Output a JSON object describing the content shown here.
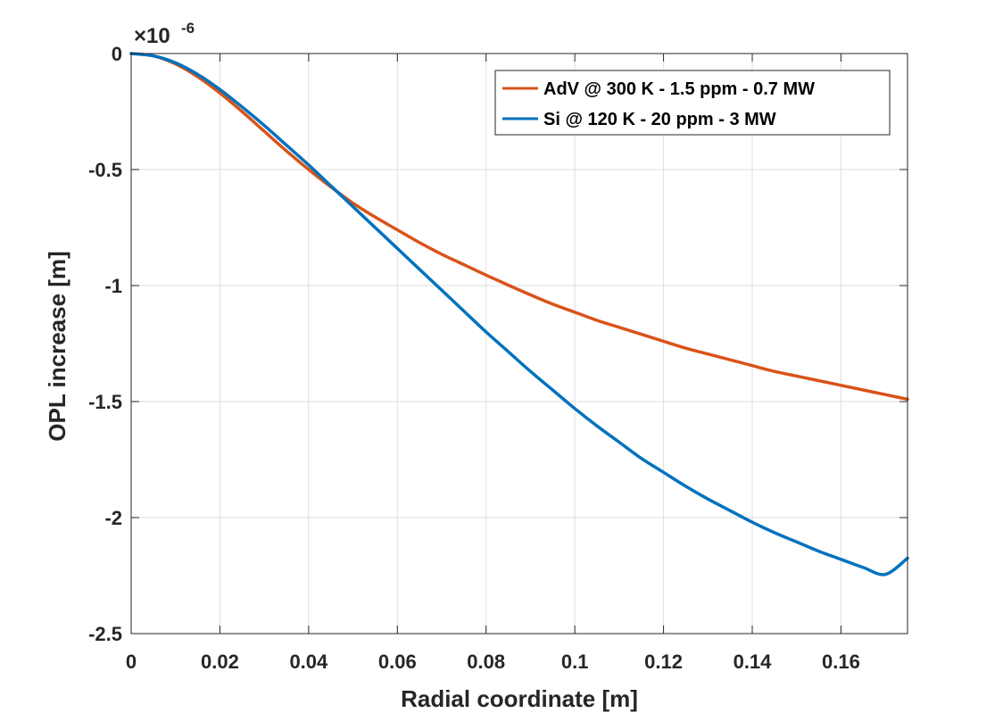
{
  "chart_data": {
    "type": "line",
    "title": "",
    "xlabel": "Radial coordinate [m]",
    "ylabel": "OPL increase [m]",
    "xlim": [
      0,
      0.175
    ],
    "ylim": [
      -2.5,
      0
    ],
    "y_exponent_label": "×10",
    "y_exponent_power": "-6",
    "grid": true,
    "legend_position": "top-right",
    "x_ticks": [
      0,
      0.02,
      0.04,
      0.06,
      0.08,
      0.1,
      0.12,
      0.14,
      0.16
    ],
    "x_tick_labels": [
      "0",
      "0.02",
      "0.04",
      "0.06",
      "0.08",
      "0.1",
      "0.12",
      "0.14",
      "0.16"
    ],
    "y_ticks": [
      0,
      -0.5,
      -1,
      -1.5,
      -2,
      -2.5
    ],
    "y_tick_labels": [
      "0",
      "-0.5",
      "-1",
      "-1.5",
      "-2",
      "-2.5"
    ],
    "series": [
      {
        "name": "AdV @ 300 K - 1.5 ppm - 0.7 MW",
        "color": "#D95319",
        "x": [
          0,
          0.005,
          0.01,
          0.015,
          0.02,
          0.025,
          0.03,
          0.035,
          0.04,
          0.045,
          0.05,
          0.055,
          0.06,
          0.065,
          0.07,
          0.075,
          0.08,
          0.085,
          0.09,
          0.095,
          0.1,
          0.105,
          0.11,
          0.115,
          0.12,
          0.125,
          0.13,
          0.135,
          0.14,
          0.145,
          0.15,
          0.155,
          0.16,
          0.165,
          0.17,
          0.175
        ],
        "y": [
          0,
          -0.01,
          -0.045,
          -0.1,
          -0.17,
          -0.25,
          -0.335,
          -0.42,
          -0.5,
          -0.575,
          -0.645,
          -0.705,
          -0.76,
          -0.815,
          -0.865,
          -0.91,
          -0.955,
          -0.998,
          -1.04,
          -1.08,
          -1.115,
          -1.15,
          -1.18,
          -1.21,
          -1.24,
          -1.27,
          -1.295,
          -1.32,
          -1.345,
          -1.37,
          -1.39,
          -1.41,
          -1.43,
          -1.45,
          -1.47,
          -1.49
        ]
      },
      {
        "name": "Si @ 120 K - 20 ppm - 3 MW",
        "color": "#0072BD",
        "x": [
          0,
          0.005,
          0.01,
          0.015,
          0.02,
          0.025,
          0.03,
          0.035,
          0.04,
          0.045,
          0.05,
          0.055,
          0.06,
          0.065,
          0.07,
          0.075,
          0.08,
          0.085,
          0.09,
          0.095,
          0.1,
          0.105,
          0.11,
          0.115,
          0.12,
          0.125,
          0.13,
          0.135,
          0.14,
          0.145,
          0.15,
          0.155,
          0.16,
          0.165,
          0.17,
          0.175
        ],
        "y": [
          0,
          -0.01,
          -0.04,
          -0.09,
          -0.155,
          -0.23,
          -0.31,
          -0.395,
          -0.48,
          -0.57,
          -0.66,
          -0.75,
          -0.84,
          -0.93,
          -1.02,
          -1.11,
          -1.2,
          -1.285,
          -1.37,
          -1.45,
          -1.53,
          -1.605,
          -1.675,
          -1.745,
          -1.805,
          -1.865,
          -1.92,
          -1.97,
          -2.02,
          -2.065,
          -2.105,
          -2.145,
          -2.18,
          -2.215,
          -2.245,
          -2.175
        ]
      }
    ]
  }
}
